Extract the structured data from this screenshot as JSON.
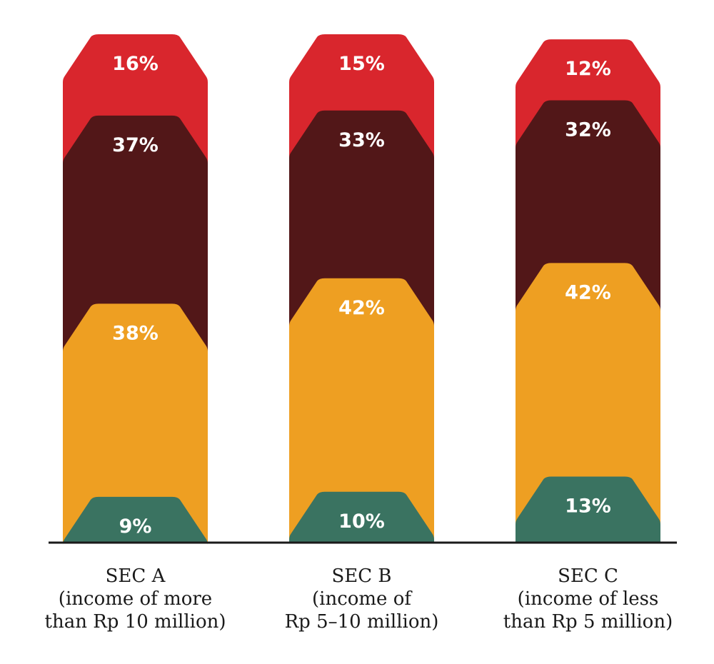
{
  "chart_data": {
    "type": "bar",
    "stacked": true,
    "categories": [
      [
        "SEC A",
        "(income of more",
        "than Rp 10 million)"
      ],
      [
        "SEC B",
        "(income of",
        "Rp 5–10 million)"
      ],
      [
        "SEC C",
        "(income of less",
        "than Rp 5 million)"
      ]
    ],
    "series": [
      {
        "color": "#3a7361",
        "values": [
          9,
          10,
          13
        ],
        "labels": [
          "9%",
          "10%",
          "13%"
        ]
      },
      {
        "color": "#ee9f22",
        "values": [
          38,
          42,
          42
        ],
        "labels": [
          "38%",
          "42%",
          "42%"
        ]
      },
      {
        "color": "#521718",
        "values": [
          37,
          33,
          32
        ],
        "labels": [
          "37%",
          "33%",
          "32%"
        ]
      },
      {
        "color": "#d9262d",
        "values": [
          16,
          15,
          12
        ],
        "labels": [
          "16%",
          "15%",
          "12%"
        ]
      }
    ],
    "title": "",
    "xlabel": "",
    "ylabel": "",
    "ylim": [
      0,
      100
    ],
    "grid": false,
    "legend": "none"
  }
}
